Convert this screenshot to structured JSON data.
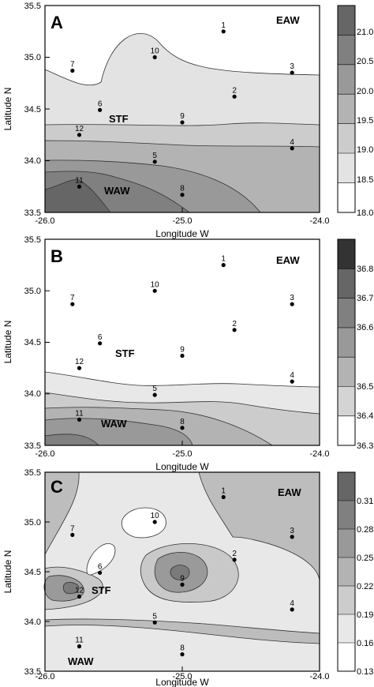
{
  "chart_data": [
    {
      "type": "contour",
      "panel_label": "A",
      "xlabel": "Longitude W",
      "ylabel": "Latitude N",
      "xlim": [
        -26.0,
        -24.0
      ],
      "ylim": [
        33.5,
        35.5
      ],
      "x_ticks": [
        "-26.0",
        "-25.0",
        "-24.0"
      ],
      "y_ticks": [
        "33.5",
        "34.0",
        "34.5",
        "35.0",
        "35.5"
      ],
      "colorbar_ticks": [
        "18.0",
        "18.5",
        "19.0",
        "19.5",
        "20.0",
        "20.5",
        "21.0"
      ],
      "region_labels": [
        "EAW",
        "STF",
        "WAW"
      ],
      "stations": [
        {
          "id": "1",
          "x": -24.7,
          "y": 35.25
        },
        {
          "id": "2",
          "x": -24.62,
          "y": 34.62
        },
        {
          "id": "3",
          "x": -24.2,
          "y": 34.85
        },
        {
          "id": "4",
          "x": -24.2,
          "y": 34.12
        },
        {
          "id": "5",
          "x": -25.2,
          "y": 33.99
        },
        {
          "id": "6",
          "x": -25.6,
          "y": 34.49
        },
        {
          "id": "7",
          "x": -25.8,
          "y": 34.87
        },
        {
          "id": "8",
          "x": -25.0,
          "y": 33.67
        },
        {
          "id": "9",
          "x": -25.0,
          "y": 34.37
        },
        {
          "id": "10",
          "x": -25.2,
          "y": 35.0
        },
        {
          "id": "11",
          "x": -25.75,
          "y": 33.75
        },
        {
          "id": "12",
          "x": -25.75,
          "y": 34.25
        }
      ]
    },
    {
      "type": "contour",
      "panel_label": "B",
      "xlabel": "Longitude W",
      "ylabel": "Latitude N",
      "xlim": [
        -26.0,
        -24.0
      ],
      "ylim": [
        33.5,
        35.5
      ],
      "x_ticks": [
        "-26.0",
        "-25.0",
        "-24.0"
      ],
      "y_ticks": [
        "33.5",
        "34.0",
        "34.5",
        "35.0",
        "35.5"
      ],
      "colorbar_ticks": [
        "36.3",
        "36.4",
        "36.5",
        "36.6",
        "36.7",
        "36.8"
      ],
      "region_labels": [
        "EAW",
        "STF",
        "WAW"
      ],
      "stations": [
        {
          "id": "1",
          "x": -24.7,
          "y": 35.25
        },
        {
          "id": "2",
          "x": -24.62,
          "y": 34.62
        },
        {
          "id": "3",
          "x": -24.2,
          "y": 34.87
        },
        {
          "id": "4",
          "x": -24.2,
          "y": 34.12
        },
        {
          "id": "5",
          "x": -25.2,
          "y": 33.99
        },
        {
          "id": "6",
          "x": -25.6,
          "y": 34.49
        },
        {
          "id": "7",
          "x": -25.8,
          "y": 34.87
        },
        {
          "id": "8",
          "x": -25.0,
          "y": 33.67
        },
        {
          "id": "9",
          "x": -25.0,
          "y": 34.37
        },
        {
          "id": "10",
          "x": -25.2,
          "y": 35.0
        },
        {
          "id": "11",
          "x": -25.75,
          "y": 33.75
        },
        {
          "id": "12",
          "x": -25.75,
          "y": 34.25
        }
      ]
    },
    {
      "type": "contour",
      "panel_label": "C",
      "xlabel": "Longitude W",
      "ylabel": "Latitude N",
      "xlim": [
        -26.0,
        -24.0
      ],
      "ylim": [
        33.5,
        35.5
      ],
      "x_ticks": [
        "-26.0",
        "-25.0",
        "-24.0"
      ],
      "y_ticks": [
        "33.5",
        "34.0",
        "34.5",
        "35.0",
        "35.5"
      ],
      "colorbar_ticks": [
        "0.13",
        "0.16",
        "0.19",
        "0.22",
        "0.25",
        "0.28",
        "0.31"
      ],
      "region_labels": [
        "EAW",
        "STF",
        "WAW"
      ],
      "stations": [
        {
          "id": "1",
          "x": -24.7,
          "y": 35.25
        },
        {
          "id": "2",
          "x": -24.62,
          "y": 34.62
        },
        {
          "id": "3",
          "x": -24.2,
          "y": 34.85
        },
        {
          "id": "4",
          "x": -24.2,
          "y": 34.12
        },
        {
          "id": "5",
          "x": -25.2,
          "y": 33.99
        },
        {
          "id": "6",
          "x": -25.6,
          "y": 34.49
        },
        {
          "id": "7",
          "x": -25.8,
          "y": 34.87
        },
        {
          "id": "8",
          "x": -25.0,
          "y": 33.67
        },
        {
          "id": "9",
          "x": -25.0,
          "y": 34.37
        },
        {
          "id": "10",
          "x": -25.2,
          "y": 35.0
        },
        {
          "id": "11",
          "x": -25.75,
          "y": 33.75
        },
        {
          "id": "12",
          "x": -25.75,
          "y": 34.25
        }
      ]
    }
  ]
}
